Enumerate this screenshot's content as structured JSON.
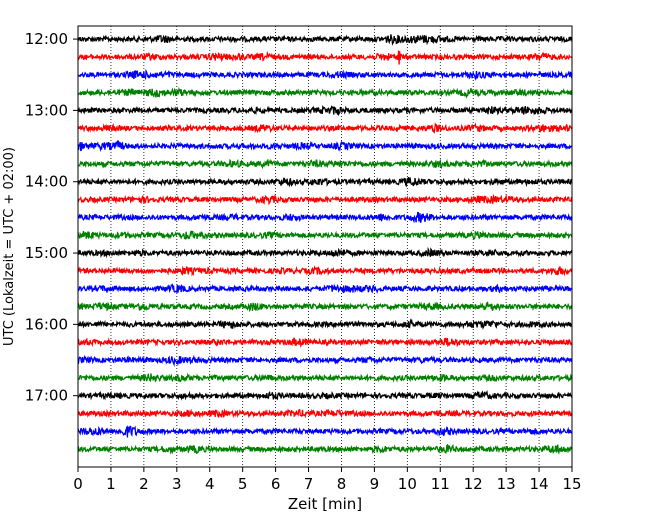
{
  "chart_data": {
    "type": "line",
    "title": "",
    "xlabel": "Zeit  [min]",
    "ylabel": "UTC (Lokalzeit = UTC + 02:00)",
    "xlim": [
      0,
      15
    ],
    "x_ticks": [
      0,
      1,
      2,
      3,
      4,
      5,
      6,
      7,
      8,
      9,
      10,
      11,
      12,
      13,
      14,
      15
    ],
    "y_range": [
      "11:49",
      "18:00"
    ],
    "y_tick_labels": [
      "12:00",
      "13:00",
      "14:00",
      "15:00",
      "16:00",
      "17:00"
    ],
    "trace_interval_minutes": 15,
    "grid": "vertical dotted lines at each minute",
    "color_cycle": [
      "#000000",
      "#ff0000",
      "#0000ff",
      "#008000"
    ],
    "series": [
      {
        "start": "12:00",
        "color": "#000000"
      },
      {
        "start": "12:15",
        "color": "#ff0000",
        "event_at_min": 9.75
      },
      {
        "start": "12:30",
        "color": "#0000ff"
      },
      {
        "start": "12:45",
        "color": "#008000"
      },
      {
        "start": "13:00",
        "color": "#000000"
      },
      {
        "start": "13:15",
        "color": "#ff0000"
      },
      {
        "start": "13:30",
        "color": "#0000ff"
      },
      {
        "start": "13:45",
        "color": "#008000"
      },
      {
        "start": "14:00",
        "color": "#000000"
      },
      {
        "start": "14:15",
        "color": "#ff0000"
      },
      {
        "start": "14:30",
        "color": "#0000ff"
      },
      {
        "start": "14:45",
        "color": "#008000"
      },
      {
        "start": "15:00",
        "color": "#000000"
      },
      {
        "start": "15:15",
        "color": "#ff0000"
      },
      {
        "start": "15:30",
        "color": "#0000ff"
      },
      {
        "start": "15:45",
        "color": "#008000"
      },
      {
        "start": "16:00",
        "color": "#000000"
      },
      {
        "start": "16:15",
        "color": "#ff0000"
      },
      {
        "start": "16:30",
        "color": "#0000ff"
      },
      {
        "start": "16:45",
        "color": "#008000"
      },
      {
        "start": "17:00",
        "color": "#000000"
      },
      {
        "start": "17:15",
        "color": "#ff0000"
      },
      {
        "start": "17:30",
        "color": "#0000ff"
      },
      {
        "start": "17:45",
        "color": "#008000"
      }
    ]
  }
}
